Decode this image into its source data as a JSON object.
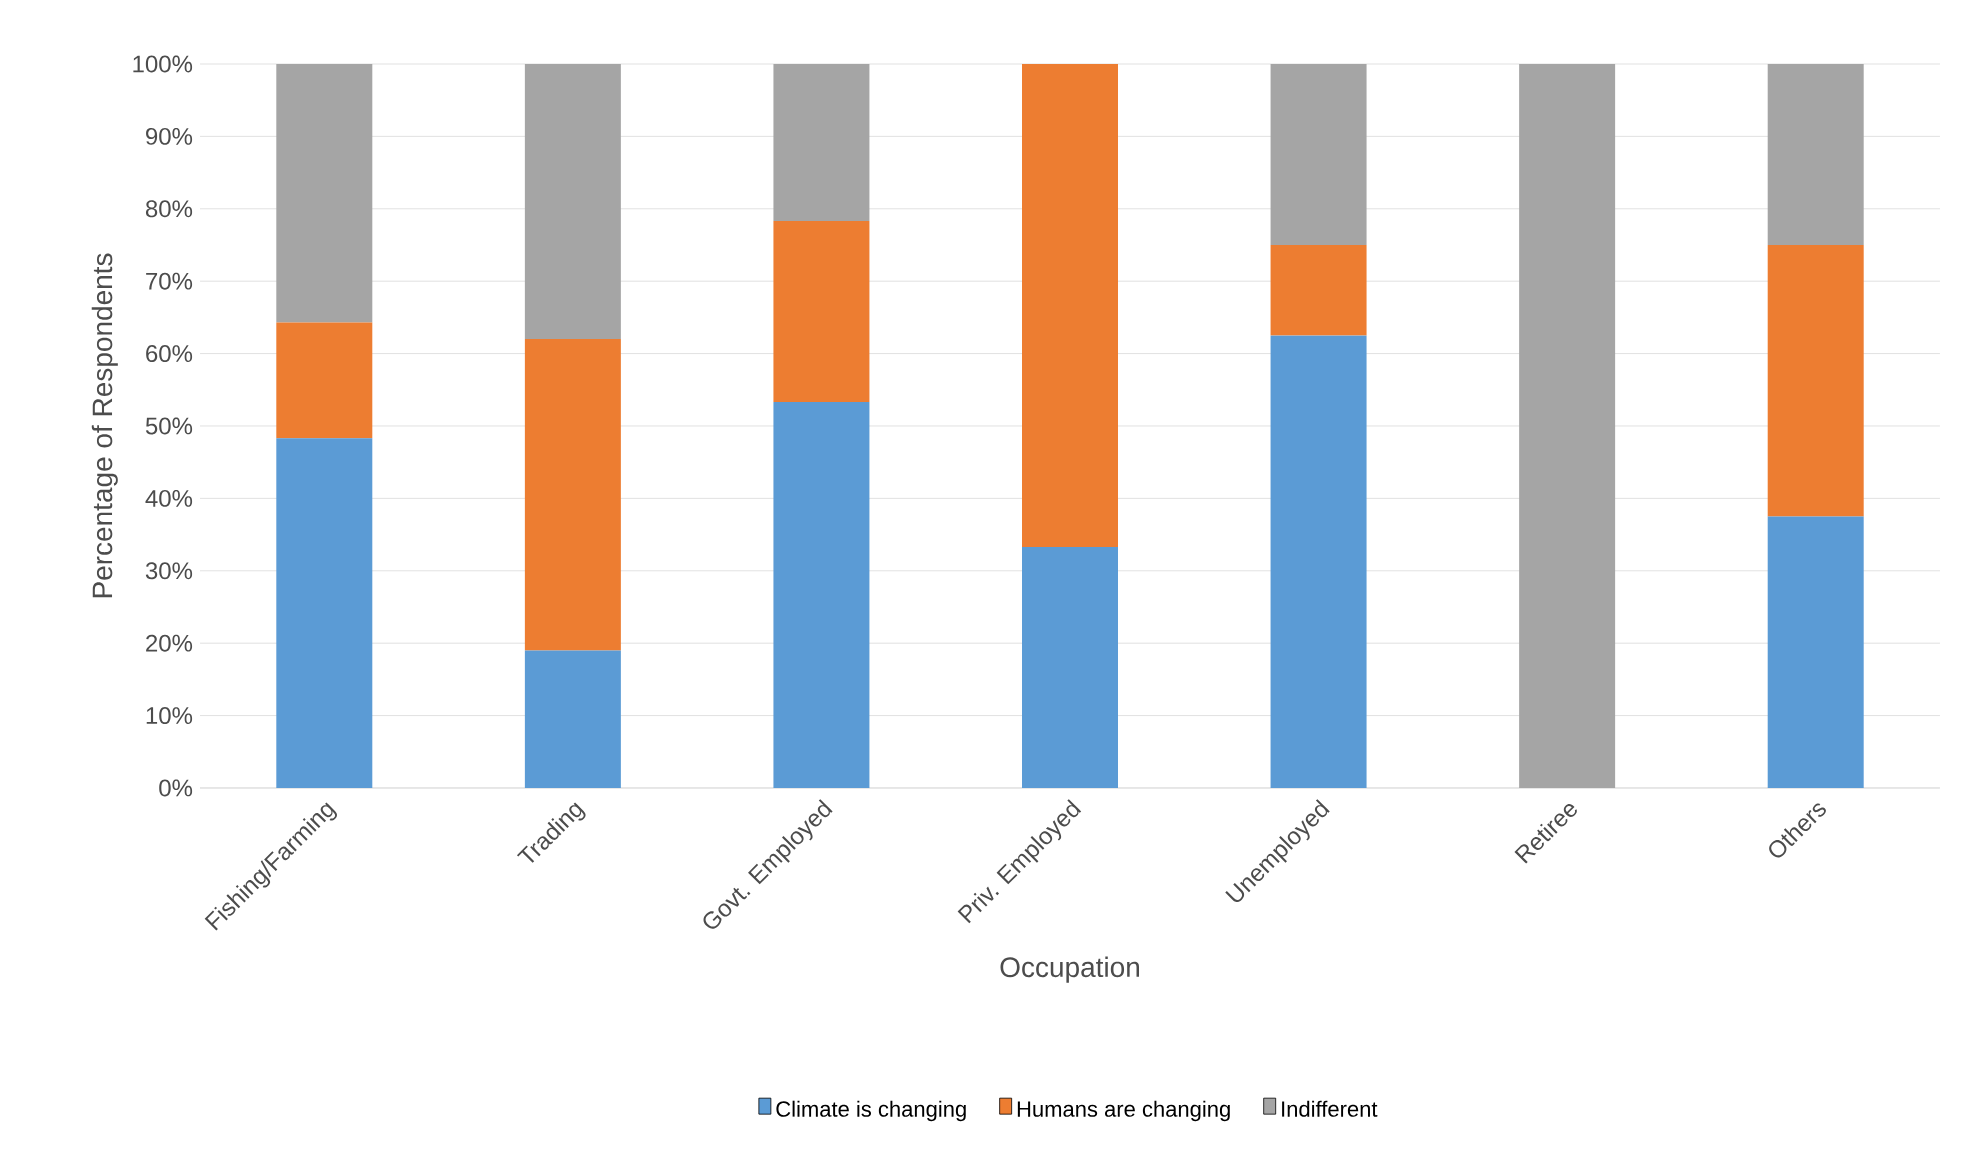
{
  "chart_data": {
    "type": "bar",
    "stacked": true,
    "xlabel": "Occupation",
    "ylabel": "Percentage of Respondents",
    "categories": [
      "Fishing/Farming",
      "Trading",
      "Govt. Employed",
      "Priv. Employed",
      "Unemployed",
      "Retiree",
      "Others"
    ],
    "series": [
      {
        "name": "Climate is changing",
        "color": "#5b9bd5",
        "values": [
          48.3,
          19,
          53.3,
          33.3,
          62.5,
          0,
          37.5
        ]
      },
      {
        "name": "Humans are changing",
        "color": "#ed7d31",
        "values": [
          16,
          43,
          25,
          66.7,
          12.5,
          0,
          37.5
        ]
      },
      {
        "name": "Indifferent",
        "color": "#a5a5a5",
        "values": [
          35.7,
          38,
          21.7,
          0,
          25,
          100,
          25
        ]
      }
    ],
    "ylim": [
      0,
      100
    ],
    "yticks": [
      {
        "value": 0,
        "label": "0%"
      },
      {
        "value": 10,
        "label": "10%"
      },
      {
        "value": 20,
        "label": "20%"
      },
      {
        "value": 30,
        "label": "30%"
      },
      {
        "value": 40,
        "label": "40%"
      },
      {
        "value": 50,
        "label": "50%"
      },
      {
        "value": 60,
        "label": "60%"
      },
      {
        "value": 70,
        "label": "70%"
      },
      {
        "value": 80,
        "label": "80%"
      },
      {
        "value": 90,
        "label": "90%"
      },
      {
        "value": 100,
        "label": "100%"
      }
    ],
    "grid": "y",
    "legend": "bottom"
  }
}
